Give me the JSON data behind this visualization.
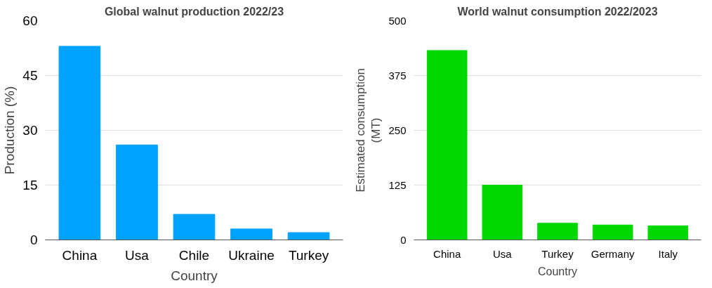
{
  "chart_data": [
    {
      "type": "bar",
      "title": "Global walnut production 2022/23",
      "xlabel": "Country",
      "ylabel": "Production (%)",
      "categories": [
        "China",
        "Usa",
        "Chile",
        "Ukraine",
        "Turkey"
      ],
      "values": [
        53,
        26,
        7,
        3,
        2
      ],
      "color": "#00a2ff",
      "ylim": [
        0,
        60
      ],
      "yticks": [
        0,
        15,
        30,
        45,
        60
      ],
      "grid": "y",
      "legend": false
    },
    {
      "type": "bar",
      "title": "World walnut consumption 2022/2023",
      "xlabel": "Country",
      "ylabel": "Estimated consumption\n(MT)",
      "categories": [
        "China",
        "Usa",
        "Turkey",
        "Germany",
        "Italy"
      ],
      "values": [
        432,
        125,
        38,
        34,
        32
      ],
      "color": "#00d800",
      "ylim": [
        0,
        500
      ],
      "yticks": [
        0,
        125,
        250,
        375,
        500
      ],
      "grid": "y",
      "legend": false
    }
  ]
}
